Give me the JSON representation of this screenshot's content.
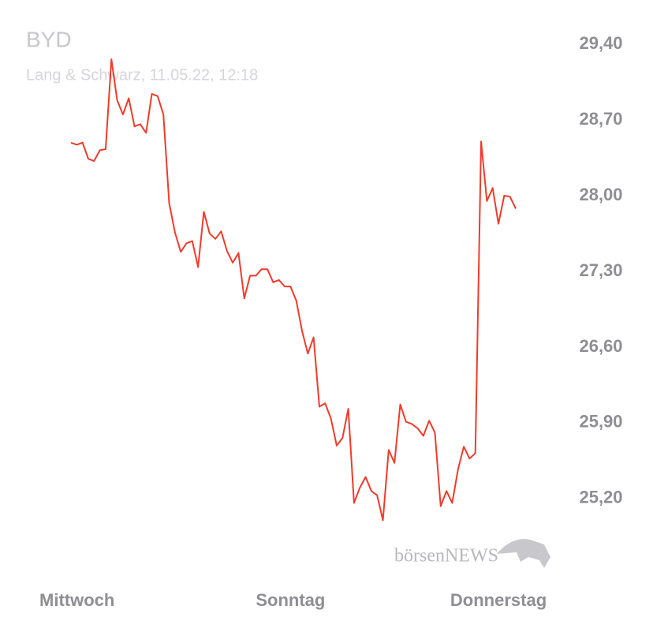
{
  "chart_data": {
    "type": "line",
    "title": "BYD",
    "subtitle": "Lang & Schwarz, 11.05.22, 12:18",
    "watermark": "börsenNEWS",
    "categories": [
      "Mittwoch",
      null,
      null,
      null,
      null,
      null,
      null,
      null,
      null,
      null,
      null,
      null,
      null,
      null,
      null,
      null,
      null,
      null,
      null,
      null,
      null,
      null,
      null,
      null,
      null,
      null,
      null,
      null,
      null,
      null,
      null,
      null,
      null,
      null,
      null,
      null,
      null,
      null,
      "Sonntag",
      null,
      null,
      null,
      null,
      null,
      null,
      null,
      null,
      null,
      null,
      null,
      null,
      null,
      null,
      null,
      null,
      null,
      null,
      null,
      null,
      null,
      null,
      null,
      null,
      null,
      null,
      null,
      null,
      null,
      null,
      null,
      null,
      null,
      null,
      null,
      "Donnerstag",
      null,
      null,
      null
    ],
    "series": [
      {
        "name": "BYD",
        "color": "#ef3b2c",
        "values": [
          28.49,
          28.47,
          28.49,
          28.34,
          28.32,
          28.42,
          28.43,
          29.26,
          28.88,
          28.75,
          28.9,
          28.64,
          28.66,
          28.58,
          28.94,
          28.92,
          28.75,
          27.93,
          27.66,
          27.48,
          27.56,
          27.58,
          27.34,
          27.85,
          27.65,
          27.6,
          27.67,
          27.49,
          27.38,
          27.47,
          27.05,
          27.26,
          27.26,
          27.32,
          27.32,
          27.2,
          27.22,
          27.16,
          27.16,
          27.03,
          26.75,
          26.54,
          26.69,
          26.05,
          26.08,
          25.94,
          25.69,
          25.76,
          26.03,
          25.16,
          25.3,
          25.4,
          25.27,
          25.23,
          25.0,
          25.65,
          25.53,
          26.07,
          25.91,
          25.89,
          25.85,
          25.78,
          25.92,
          25.81,
          25.13,
          25.27,
          25.16,
          25.47,
          25.68,
          25.57,
          25.62,
          28.5,
          27.95,
          28.07,
          27.74,
          28.0,
          27.99,
          27.88
        ]
      }
    ],
    "ylim": [
      24.7,
      29.52
    ],
    "yticks": [
      {
        "value": 29.4,
        "label": "29,40"
      },
      {
        "value": 28.7,
        "label": "28,70"
      },
      {
        "value": 28.0,
        "label": "28,00"
      },
      {
        "value": 27.3,
        "label": "27,30"
      },
      {
        "value": 26.6,
        "label": "26,60"
      },
      {
        "value": 25.9,
        "label": "25,90"
      },
      {
        "value": 25.2,
        "label": "25,20"
      }
    ],
    "grid": false
  }
}
